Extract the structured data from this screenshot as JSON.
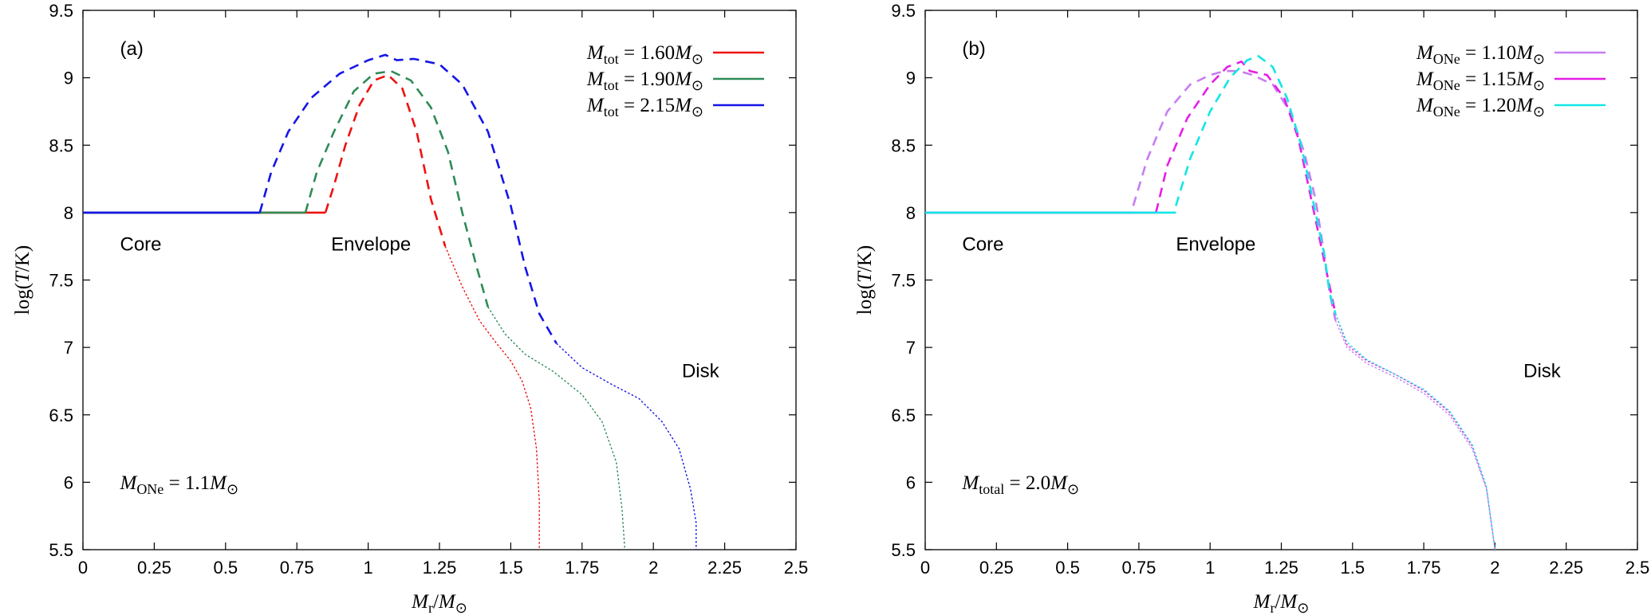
{
  "colors": {
    "red": "#ee1111",
    "green": "#2e8b57",
    "blue": "#1515e6",
    "violet": "#c77df2",
    "magenta": "#e61ee6",
    "cyan": "#12e6e6"
  },
  "chart_data": [
    {
      "type": "line",
      "panel_label": "(a)",
      "xlabel": "M_r/M_⊙",
      "ylabel": "log(T/K)",
      "xlim": [
        0,
        2.5
      ],
      "ylim": [
        5.5,
        9.5
      ],
      "xticks": [
        "0",
        "0.25",
        "0.5",
        "0.75",
        "1",
        "1.25",
        "1.5",
        "1.75",
        "2",
        "2.25",
        "2.5"
      ],
      "yticks": [
        "5.5",
        "6",
        "6.5",
        "7",
        "7.5",
        "8",
        "8.5",
        "9",
        "9.5"
      ],
      "region_labels": [
        {
          "text": "Core",
          "x": 0.13,
          "y": 7.72
        },
        {
          "text": "Envelope",
          "x": 0.87,
          "y": 7.72
        },
        {
          "text": "Disk",
          "x": 2.1,
          "y": 6.78
        }
      ],
      "annotation": {
        "main": "M",
        "sub": "ONe",
        "rest": " = 1.1M",
        "sun": "⊙",
        "x": 0.13,
        "y": 5.95
      },
      "grid": false,
      "legend_position": "top-right",
      "series": [
        {
          "name": "M_tot = 1.60M_⊙",
          "legend_main": "M",
          "legend_sub": "tot",
          "legend_rest": " = 1.60M",
          "legend_sun": "⊙",
          "color": "red",
          "core": [
            [
              0,
              8.0
            ],
            [
              0.85,
              8.0
            ]
          ],
          "envelope": [
            [
              0.85,
              8.0
            ],
            [
              0.88,
              8.2
            ],
            [
              0.92,
              8.5
            ],
            [
              0.97,
              8.8
            ],
            [
              1.02,
              8.98
            ],
            [
              1.07,
              9.02
            ],
            [
              1.12,
              8.92
            ],
            [
              1.17,
              8.6
            ],
            [
              1.22,
              8.1
            ],
            [
              1.27,
              7.75
            ]
          ],
          "disk": [
            [
              1.27,
              7.75
            ],
            [
              1.33,
              7.45
            ],
            [
              1.39,
              7.2
            ],
            [
              1.45,
              7.03
            ],
            [
              1.5,
              6.9
            ],
            [
              1.54,
              6.75
            ],
            [
              1.57,
              6.55
            ],
            [
              1.59,
              6.25
            ],
            [
              1.6,
              5.85
            ],
            [
              1.6,
              5.5
            ]
          ]
        },
        {
          "name": "M_tot = 1.90M_⊙",
          "legend_main": "M",
          "legend_sub": "tot",
          "legend_rest": " = 1.90M",
          "legend_sun": "⊙",
          "color": "green",
          "core": [
            [
              0,
              8.0
            ],
            [
              0.78,
              8.0
            ]
          ],
          "envelope": [
            [
              0.78,
              8.0
            ],
            [
              0.82,
              8.3
            ],
            [
              0.88,
              8.6
            ],
            [
              0.95,
              8.9
            ],
            [
              1.02,
              9.03
            ],
            [
              1.08,
              9.05
            ],
            [
              1.15,
              8.98
            ],
            [
              1.22,
              8.78
            ],
            [
              1.28,
              8.45
            ],
            [
              1.33,
              8.0
            ],
            [
              1.38,
              7.6
            ],
            [
              1.42,
              7.3
            ]
          ],
          "disk": [
            [
              1.42,
              7.3
            ],
            [
              1.48,
              7.1
            ],
            [
              1.55,
              6.95
            ],
            [
              1.65,
              6.82
            ],
            [
              1.75,
              6.65
            ],
            [
              1.82,
              6.45
            ],
            [
              1.87,
              6.15
            ],
            [
              1.89,
              5.8
            ],
            [
              1.9,
              5.5
            ]
          ]
        },
        {
          "name": "M_tot = 2.15M_⊙",
          "legend_main": "M",
          "legend_sub": "tot",
          "legend_rest": " = 2.15M",
          "legend_sun": "⊙",
          "color": "blue",
          "core": [
            [
              0,
              8.0
            ],
            [
              0.62,
              8.0
            ]
          ],
          "envelope": [
            [
              0.62,
              8.0
            ],
            [
              0.66,
              8.3
            ],
            [
              0.72,
              8.6
            ],
            [
              0.8,
              8.85
            ],
            [
              0.9,
              9.03
            ],
            [
              1.0,
              9.13
            ],
            [
              1.06,
              9.17
            ],
            [
              1.1,
              9.13
            ],
            [
              1.16,
              9.14
            ],
            [
              1.25,
              9.1
            ],
            [
              1.33,
              8.95
            ],
            [
              1.42,
              8.6
            ],
            [
              1.5,
              8.05
            ],
            [
              1.55,
              7.6
            ],
            [
              1.6,
              7.25
            ],
            [
              1.66,
              7.03
            ]
          ],
          "disk": [
            [
              1.66,
              7.03
            ],
            [
              1.75,
              6.85
            ],
            [
              1.85,
              6.73
            ],
            [
              1.95,
              6.62
            ],
            [
              2.03,
              6.45
            ],
            [
              2.09,
              6.25
            ],
            [
              2.13,
              5.95
            ],
            [
              2.15,
              5.7
            ],
            [
              2.15,
              5.5
            ]
          ]
        }
      ]
    },
    {
      "type": "line",
      "panel_label": "(b)",
      "xlabel": "M_r/M_⊙",
      "ylabel": "log(T/K)",
      "xlim": [
        0,
        2.5
      ],
      "ylim": [
        5.5,
        9.5
      ],
      "xticks": [
        "0",
        "0.25",
        "0.5",
        "0.75",
        "1",
        "1.25",
        "1.5",
        "1.75",
        "2",
        "2.25",
        "2.5"
      ],
      "yticks": [
        "5.5",
        "6",
        "6.5",
        "7",
        "7.5",
        "8",
        "8.5",
        "9",
        "9.5"
      ],
      "region_labels": [
        {
          "text": "Core",
          "x": 0.13,
          "y": 7.72
        },
        {
          "text": "Envelope",
          "x": 0.88,
          "y": 7.72
        },
        {
          "text": "Disk",
          "x": 2.1,
          "y": 6.78
        }
      ],
      "annotation": {
        "main": "M",
        "sub": "total",
        "rest": " = 2.0M",
        "sun": "⊙",
        "x": 0.13,
        "y": 5.95
      },
      "grid": false,
      "legend_position": "top-right",
      "series": [
        {
          "name": "M_ONe = 1.10M_⊙",
          "legend_main": "M",
          "legend_sub": "ONe",
          "legend_rest": " = 1.10M",
          "legend_sun": "⊙",
          "color": "violet",
          "core": [
            [
              0,
              8.0
            ],
            [
              0.73,
              8.0
            ]
          ],
          "envelope": [
            [
              0.73,
              8.05
            ],
            [
              0.78,
              8.4
            ],
            [
              0.85,
              8.75
            ],
            [
              0.93,
              8.95
            ],
            [
              1.0,
              9.02
            ],
            [
              1.05,
              9.05
            ],
            [
              1.1,
              9.05
            ],
            [
              1.15,
              9.02
            ],
            [
              1.22,
              8.95
            ],
            [
              1.28,
              8.75
            ],
            [
              1.33,
              8.45
            ],
            [
              1.37,
              8.1
            ],
            [
              1.4,
              7.7
            ],
            [
              1.42,
              7.4
            ],
            [
              1.44,
              7.2
            ]
          ],
          "disk": [
            [
              1.44,
              7.2
            ],
            [
              1.48,
              7.0
            ],
            [
              1.55,
              6.88
            ],
            [
              1.65,
              6.78
            ],
            [
              1.75,
              6.66
            ],
            [
              1.84,
              6.5
            ],
            [
              1.92,
              6.25
            ],
            [
              1.97,
              5.95
            ],
            [
              2.0,
              5.5
            ]
          ]
        },
        {
          "name": "M_ONe = 1.15M_⊙",
          "legend_main": "M",
          "legend_sub": "ONe",
          "legend_rest": " = 1.15M",
          "legend_sun": "⊙",
          "color": "magenta",
          "core": [
            [
              0,
              8.0
            ],
            [
              0.81,
              8.0
            ]
          ],
          "envelope": [
            [
              0.81,
              8.0
            ],
            [
              0.85,
              8.35
            ],
            [
              0.92,
              8.7
            ],
            [
              1.0,
              8.95
            ],
            [
              1.06,
              9.08
            ],
            [
              1.11,
              9.12
            ],
            [
              1.14,
              9.05
            ],
            [
              1.2,
              9.02
            ],
            [
              1.26,
              8.85
            ],
            [
              1.31,
              8.55
            ],
            [
              1.35,
              8.15
            ],
            [
              1.39,
              7.75
            ],
            [
              1.42,
              7.45
            ],
            [
              1.44,
              7.25
            ]
          ],
          "disk": [
            [
              1.44,
              7.25
            ],
            [
              1.48,
              7.02
            ],
            [
              1.55,
              6.9
            ],
            [
              1.65,
              6.8
            ],
            [
              1.75,
              6.68
            ],
            [
              1.84,
              6.52
            ],
            [
              1.92,
              6.27
            ],
            [
              1.97,
              5.96
            ],
            [
              2.0,
              5.5
            ]
          ]
        },
        {
          "name": "M_ONe = 1.20M_⊙",
          "legend_main": "M",
          "legend_sub": "ONe",
          "legend_rest": " = 1.20M",
          "legend_sun": "⊙",
          "color": "cyan",
          "core": [
            [
              0,
              8.0
            ],
            [
              0.88,
              8.0
            ]
          ],
          "envelope": [
            [
              0.88,
              8.05
            ],
            [
              0.93,
              8.4
            ],
            [
              1.0,
              8.75
            ],
            [
              1.07,
              9.0
            ],
            [
              1.13,
              9.13
            ],
            [
              1.17,
              9.16
            ],
            [
              1.22,
              9.08
            ],
            [
              1.27,
              8.85
            ],
            [
              1.32,
              8.5
            ],
            [
              1.36,
              8.1
            ],
            [
              1.4,
              7.7
            ],
            [
              1.42,
              7.4
            ],
            [
              1.44,
              7.25
            ]
          ],
          "disk": [
            [
              1.44,
              7.25
            ],
            [
              1.48,
              7.04
            ],
            [
              1.55,
              6.91
            ],
            [
              1.65,
              6.8
            ],
            [
              1.75,
              6.69
            ],
            [
              1.84,
              6.53
            ],
            [
              1.92,
              6.28
            ],
            [
              1.97,
              5.97
            ],
            [
              2.0,
              5.5
            ]
          ]
        }
      ]
    }
  ]
}
